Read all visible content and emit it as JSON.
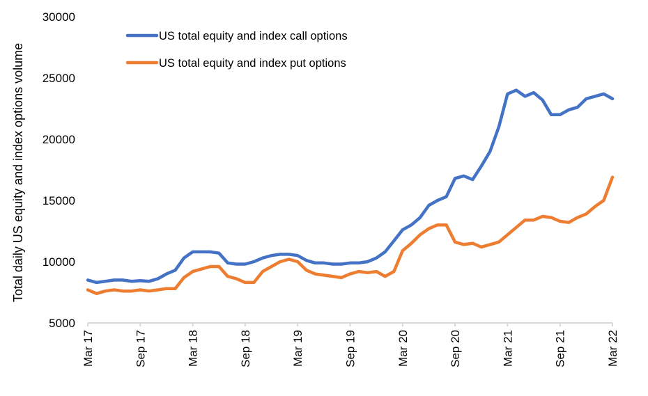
{
  "chart_data": {
    "type": "line",
    "title": "",
    "xlabel": "",
    "ylabel": "Total daily US equity and index options volume",
    "ylim": [
      5000,
      30000
    ],
    "yticks": [
      "5000",
      "10000",
      "15000",
      "20000",
      "25000",
      "30000"
    ],
    "xtick_labels": [
      "Mar 17",
      "Sep 17",
      "Mar 18",
      "Sep 18",
      "Mar 19",
      "Sep 19",
      "Mar 20",
      "Sep 20",
      "Mar 21",
      "Sep 21",
      "Mar 22"
    ],
    "x_unit": "months since Mar 17",
    "xlim": [
      0,
      60
    ],
    "grid": false,
    "legend_position": "top-left",
    "x": [
      0,
      1,
      2,
      3,
      4,
      5,
      6,
      7,
      8,
      9,
      10,
      11,
      12,
      13,
      14,
      15,
      16,
      17,
      18,
      19,
      20,
      21,
      22,
      23,
      24,
      25,
      26,
      27,
      28,
      29,
      30,
      31,
      32,
      33,
      34,
      35,
      36,
      37,
      38,
      39,
      40,
      41,
      42,
      43,
      44,
      45,
      46,
      47,
      48,
      49,
      50,
      51,
      52,
      53,
      54,
      55,
      56,
      57,
      58,
      59,
      60
    ],
    "series": [
      {
        "name": "US total equity and index call options",
        "color": "#4472C4",
        "values": [
          8500,
          8300,
          8400,
          8500,
          8500,
          8400,
          8450,
          8400,
          8600,
          9000,
          9300,
          10300,
          10800,
          10800,
          10800,
          10700,
          9900,
          9800,
          9800,
          10000,
          10300,
          10500,
          10600,
          10600,
          10500,
          10100,
          9900,
          9900,
          9800,
          9800,
          9900,
          9900,
          10000,
          10300,
          10800,
          11700,
          12600,
          13000,
          13600,
          14600,
          15000,
          15300,
          16800,
          17000,
          16700,
          17800,
          19000,
          21000,
          23700,
          24000,
          23500,
          23800,
          23200,
          22000,
          22000,
          22400,
          22600,
          23300,
          23500,
          23700,
          23300
        ]
      },
      {
        "name": "US total equity and index put options",
        "color": "#ED7D31",
        "values": [
          7700,
          7400,
          7600,
          7700,
          7600,
          7600,
          7700,
          7600,
          7700,
          7800,
          7800,
          8700,
          9200,
          9400,
          9600,
          9600,
          8800,
          8600,
          8300,
          8300,
          9200,
          9600,
          10000,
          10200,
          10000,
          9300,
          9000,
          8900,
          8800,
          8700,
          9000,
          9200,
          9100,
          9200,
          8800,
          9200,
          10900,
          11500,
          12200,
          12700,
          13000,
          13000,
          11600,
          11400,
          11500,
          11200,
          11400,
          11600,
          12200,
          12800,
          13400,
          13400,
          13700,
          13600,
          13300,
          13200,
          13600,
          13900,
          14500,
          15000,
          16900
        ]
      }
    ]
  }
}
